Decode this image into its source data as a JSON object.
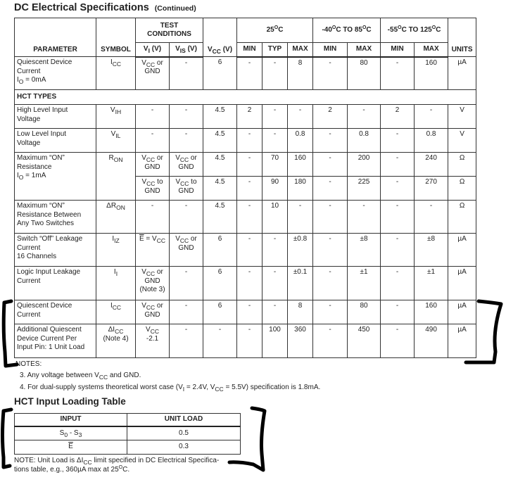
{
  "title": "DC Electrical Specifications",
  "title_suffix": "(Continued)",
  "spec_table": {
    "header": {
      "parameter": "PARAMETER",
      "symbol": "SYMBOL",
      "test_conditions": "TEST\nCONDITIONS",
      "vi": "V_{I} (V)",
      "vis": "V_{IS} (V)",
      "vcc": "V_{CC} (V)",
      "t25": "25^{O}C",
      "t85": "-40^{O}C TO 85^{O}C",
      "t125": "-55^{O}C TO 125^{O}C",
      "min": "MIN",
      "typ": "TYP",
      "max": "MAX",
      "units": "UNITS"
    },
    "rows": [
      {
        "param": "Quiescent Device\nCurrent\nI_{O} = 0mA",
        "symbol": "I_{CC}",
        "vi": "V_{CC} or\nGND",
        "vis": "-",
        "vcc": "6",
        "values": [
          "-",
          "-",
          "8",
          "-",
          "80",
          "-",
          "160"
        ],
        "units": "µA"
      },
      {
        "section": "HCT TYPES"
      },
      {
        "param": "High Level Input\nVoltage",
        "symbol": "V_{IH}",
        "vi": "-",
        "vis": "-",
        "vcc": "4.5",
        "values": [
          "2",
          "-",
          "-",
          "2",
          "-",
          "2",
          "-"
        ],
        "units": "V"
      },
      {
        "param": "Low Level Input\nVoltage",
        "symbol": "V_{IL}",
        "vi": "-",
        "vis": "-",
        "vcc": "4.5",
        "values": [
          "-",
          "-",
          "0.8",
          "-",
          "0.8",
          "-",
          "0.8"
        ],
        "units": "V"
      },
      {
        "param": "Maximum “ON”\nResistance\nI_{O} = 1mA",
        "symbol": "R_{ON}",
        "span": 2,
        "vi": "V_{CC} or\nGND",
        "vis": "V_{CC} or\nGND",
        "vcc": "4.5",
        "values": [
          "-",
          "70",
          "160",
          "-",
          "200",
          "-",
          "240"
        ],
        "units": "Ω"
      },
      {
        "cont": true,
        "vi": "V_{CC} to\nGND",
        "vis": "V_{CC} to\nGND",
        "vcc": "4.5",
        "values": [
          "-",
          "90",
          "180",
          "-",
          "225",
          "-",
          "270"
        ],
        "units": "Ω"
      },
      {
        "param": "Maximum “ON”\nResistance Between\nAny Two Switches",
        "symbol": "ΔR_{ON}",
        "vi": "-",
        "vis": "-",
        "vcc": "4.5",
        "values": [
          "-",
          "10",
          "-",
          "-",
          "-",
          "-",
          "-"
        ],
        "units": "Ω"
      },
      {
        "param": "Switch “Off” Leakage\nCurrent\n16 Channels",
        "symbol": "I_{IZ}",
        "vi": "~{E} = V_{CC}",
        "vis": "V_{CC} or\nGND",
        "vcc": "6",
        "values": [
          "-",
          "-",
          "±0.8",
          "-",
          "±8",
          "-",
          "±8"
        ],
        "units": "µA"
      },
      {
        "param": "Logic Input Leakage\nCurrent",
        "symbol": "I_{I}",
        "vi": "V_{CC} or\nGND\n(Note 3)",
        "vis": "-",
        "vcc": "6",
        "values": [
          "-",
          "-",
          "±0.1",
          "-",
          "±1",
          "-",
          "±1"
        ],
        "units": "µA"
      },
      {
        "param": "Quiescent Device\nCurrent",
        "symbol": "I_{CC}",
        "vi": "V_{CC} or\nGND",
        "vis": "-",
        "vcc": "6",
        "values": [
          "-",
          "-",
          "8",
          "-",
          "80",
          "-",
          "160"
        ],
        "units": "µA"
      },
      {
        "param": "Additional Quiescent\nDevice Current Per\nInput Pin: 1 Unit Load",
        "symbol": "ΔI_{CC}\n(Note 4)",
        "vi": "V_{CC}\n-2.1",
        "vis": "-",
        "vcc": "-",
        "values": [
          "-",
          "100",
          "360",
          "-",
          "450",
          "-",
          "490"
        ],
        "units": "µA"
      }
    ]
  },
  "notes": {
    "heading": "NOTES:",
    "items": [
      "3.  Any voltage between V_{CC} and GND.",
      "4.  For dual-supply systems theoretical worst case (V_{I} = 2.4V, V_{CC} = 5.5V) specification is 1.8mA."
    ]
  },
  "loading_table": {
    "title": "HCT Input Loading Table",
    "headers": [
      "INPUT",
      "UNIT LOAD"
    ],
    "rows": [
      [
        "S_{0} - S_{3}",
        "0.5"
      ],
      [
        "~{E}",
        "0.3"
      ]
    ],
    "note": "NOTE:  Unit Load is ΔI_{CC} limit specified in DC Electrical Specifica-\ntions table, e.g., 360µA max at 25^{O}C."
  }
}
